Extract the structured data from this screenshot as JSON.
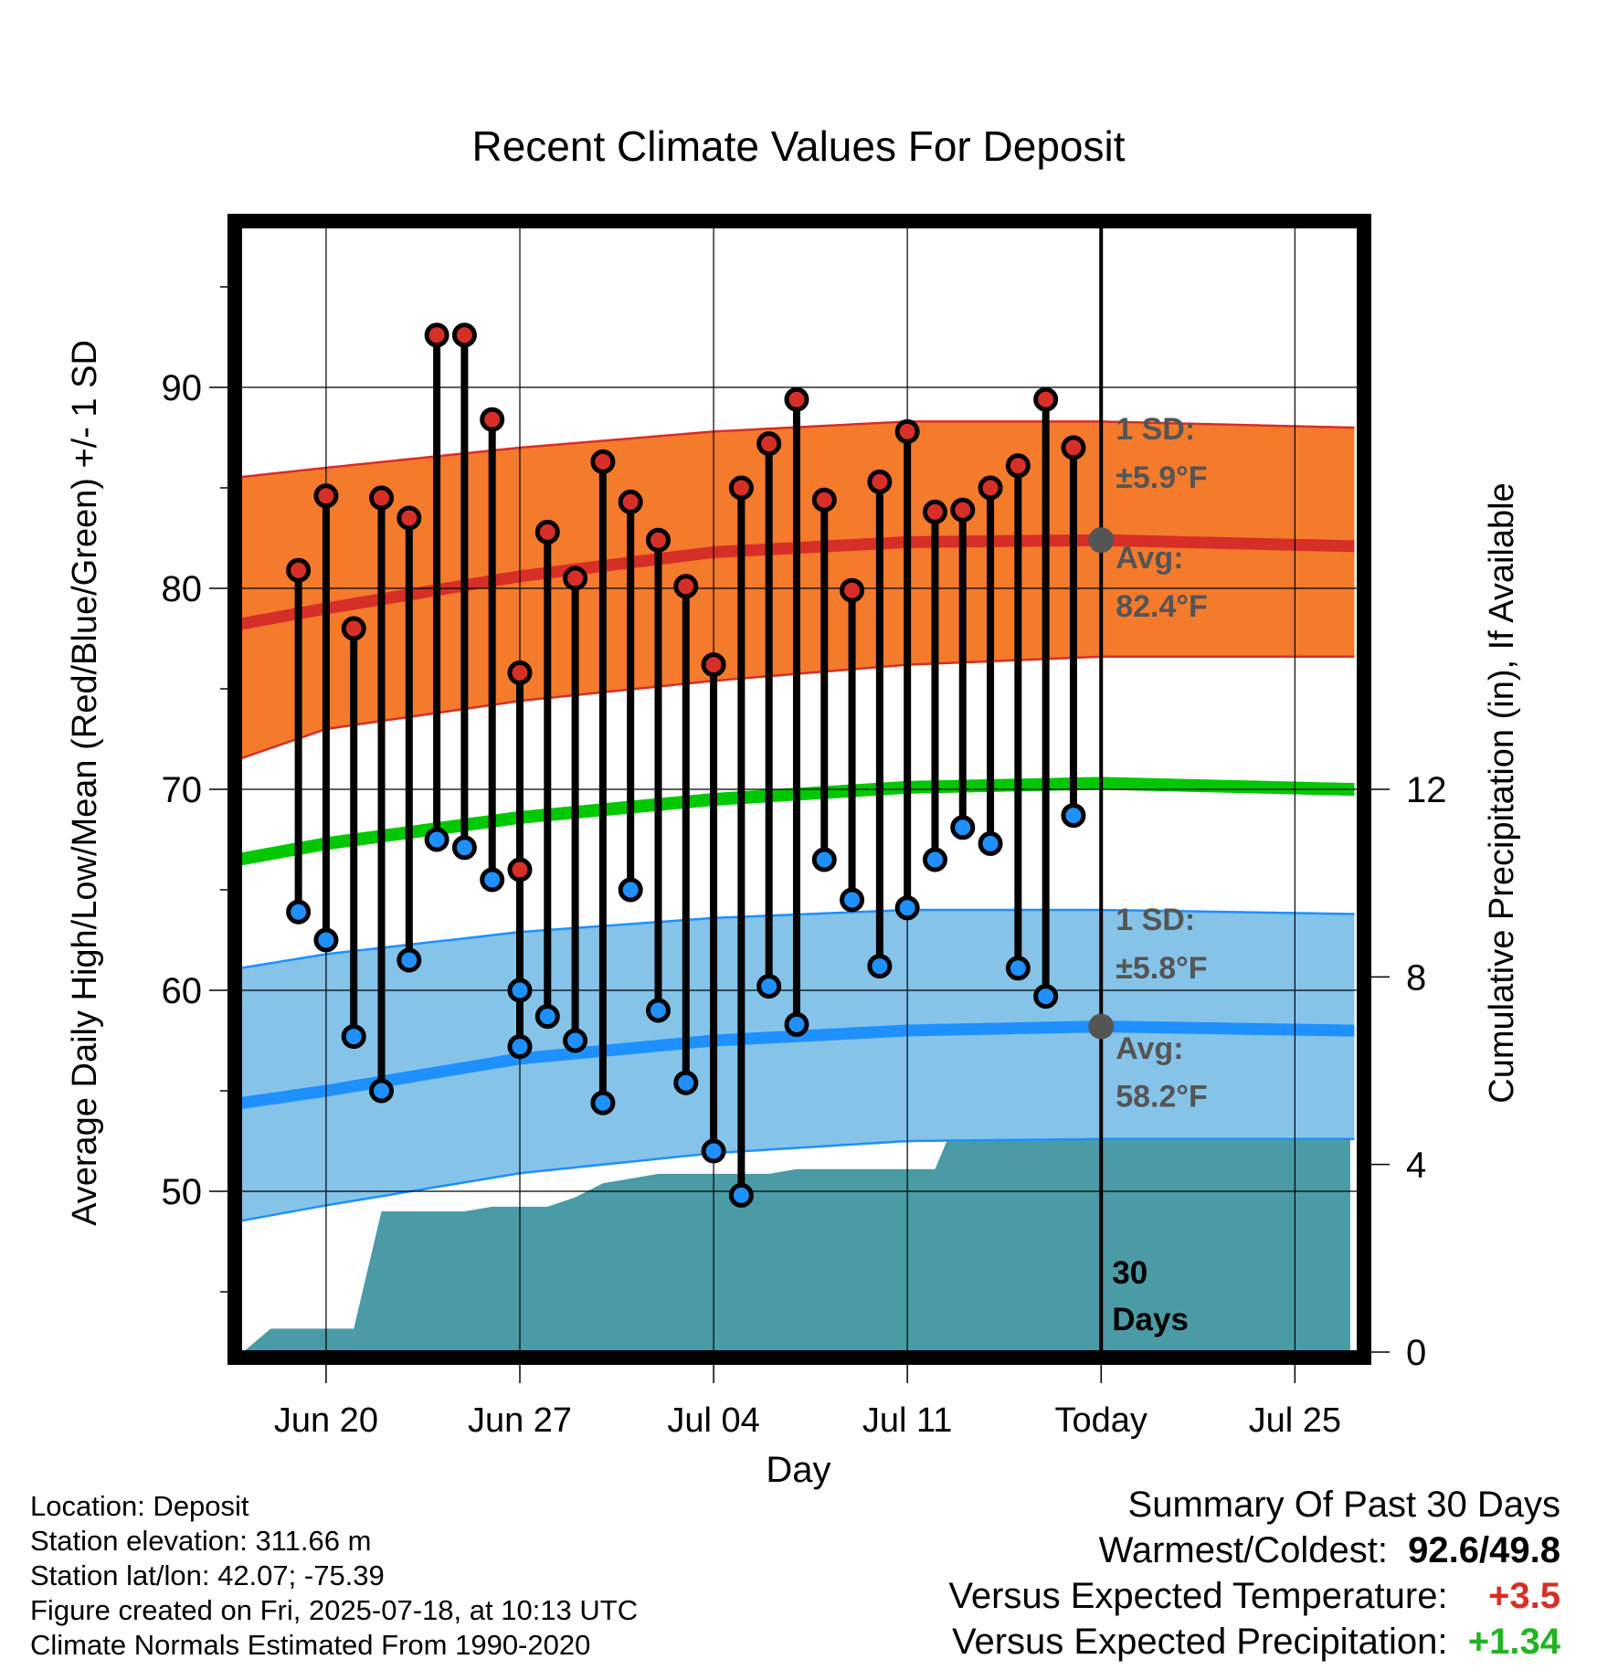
{
  "chart_data": {
    "type": "line",
    "title": "Recent Climate Values For Deposit",
    "xlabel": "Day",
    "ylabel": "Average Daily High/Low/Mean (Red/Blue/Green) +/- 1 SD",
    "y2label": "Cumulative Precipitation (in), If Available",
    "ylim": [
      42,
      98
    ],
    "y2lim": [
      0,
      24
    ],
    "yticks": [
      90,
      80,
      70,
      60,
      50
    ],
    "y2ticks": [
      12,
      8,
      4,
      0
    ],
    "x_tick_labels": [
      "Jun 20",
      "Jun 27",
      "Jul 04",
      "Jul 11",
      "Today",
      "Jul 25"
    ],
    "x_tick_days": [
      20,
      27,
      34,
      41,
      48,
      55
    ],
    "today_day": 48,
    "days": [
      19,
      20,
      21,
      22,
      23,
      24,
      25,
      26,
      27,
      28,
      29,
      30,
      31,
      32,
      33,
      34,
      35,
      36,
      37,
      38,
      39,
      40,
      41,
      42,
      43,
      44,
      45,
      46,
      47
    ],
    "highs": [
      80.9,
      84.6,
      78.0,
      84.5,
      83.5,
      92.6,
      92.6,
      88.4,
      75.8,
      66.0,
      82.8,
      80.5,
      86.3,
      84.3,
      82.4,
      80.1,
      76.2,
      85.0,
      87.2,
      89.4,
      84.4,
      79.9,
      85.3,
      87.8,
      83.8,
      83.9,
      85.0,
      86.1,
      89.4,
      87.0
    ],
    "high_days": [
      19,
      20,
      21,
      22,
      23,
      24,
      25,
      26,
      27,
      27,
      28,
      29,
      30,
      31,
      32,
      33,
      34,
      35,
      36,
      37,
      38,
      39,
      40,
      41,
      42,
      43,
      44,
      45,
      46,
      47
    ],
    "lows": [
      63.9,
      62.5,
      57.7,
      55.0,
      61.5,
      67.5,
      67.1,
      65.5,
      60.0,
      57.2,
      58.7,
      57.5,
      54.4,
      65.0,
      59.0,
      55.4,
      52.0,
      49.8,
      60.2,
      58.3,
      66.5,
      64.5,
      61.2,
      64.1,
      66.5,
      68.1,
      67.3,
      61.1,
      59.7,
      68.7
    ],
    "low_days": [
      19,
      20,
      21,
      22,
      23,
      24,
      25,
      26,
      27,
      27,
      28,
      29,
      30,
      31,
      32,
      33,
      34,
      35,
      36,
      37,
      38,
      39,
      40,
      41,
      42,
      43,
      44,
      45,
      46,
      47
    ],
    "series": [
      {
        "name": "High Avg",
        "color": "#d62f27",
        "days": [
          16,
          20,
          27,
          34,
          41,
          48,
          57
        ],
        "values": [
          78.0,
          79.0,
          80.6,
          81.8,
          82.3,
          82.4,
          82.1
        ]
      },
      {
        "name": "High +1 SD",
        "color": "#d62f27",
        "days": [
          16,
          20,
          27,
          34,
          41,
          48,
          57
        ],
        "values": [
          85.4,
          86.0,
          87.0,
          87.8,
          88.3,
          88.3,
          88.0
        ]
      },
      {
        "name": "High -1 SD",
        "color": "#d62f27",
        "days": [
          16,
          20,
          27,
          34,
          41,
          48,
          57
        ],
        "values": [
          71.1,
          73.0,
          74.4,
          75.4,
          76.2,
          76.6,
          76.6
        ]
      },
      {
        "name": "Mean Avg",
        "color": "#00c800",
        "days": [
          16,
          20,
          27,
          34,
          41,
          48,
          57
        ],
        "values": [
          66.3,
          67.3,
          68.6,
          69.5,
          70.1,
          70.3,
          70.0
        ]
      },
      {
        "name": "Low Avg",
        "color": "#1e90ff",
        "days": [
          16,
          20,
          27,
          34,
          41,
          48,
          57
        ],
        "values": [
          54.2,
          55.0,
          56.6,
          57.5,
          58.0,
          58.2,
          58.0
        ]
      },
      {
        "name": "Low +1 SD",
        "color": "#1e90ff",
        "days": [
          16,
          20,
          27,
          34,
          41,
          48,
          57
        ],
        "values": [
          60.9,
          61.8,
          62.9,
          63.6,
          64.0,
          64.0,
          63.8
        ]
      },
      {
        "name": "Low -1 SD",
        "color": "#1e90ff",
        "days": [
          16,
          20,
          27,
          34,
          41,
          48,
          57
        ],
        "values": [
          48.3,
          49.3,
          50.9,
          51.9,
          52.5,
          52.6,
          52.6
        ]
      }
    ],
    "precip": {
      "color": "#4a9ba5",
      "days": [
        16,
        17,
        18,
        19,
        20,
        21,
        22,
        23,
        24,
        25,
        26,
        27,
        28,
        29,
        30,
        31,
        32,
        33,
        34,
        35,
        36,
        37,
        38,
        39,
        40,
        41,
        42,
        43,
        44,
        45,
        46,
        47,
        48,
        57
      ],
      "values": [
        0.0,
        0.0,
        0.5,
        0.5,
        0.5,
        0.5,
        3.0,
        3.0,
        3.0,
        3.0,
        3.1,
        3.1,
        3.1,
        3.3,
        3.6,
        3.7,
        3.8,
        3.8,
        3.8,
        3.8,
        3.8,
        3.9,
        3.9,
        3.9,
        3.9,
        3.9,
        3.9,
        5.3,
        5.6,
        5.6,
        5.6,
        5.6,
        5.6,
        5.6
      ]
    },
    "annotations": {
      "high_sd": {
        "line1": "1 SD:",
        "line2": "±5.9°F"
      },
      "high_avg": {
        "line1": "Avg:",
        "line2": "82.4°F",
        "value": 82.4
      },
      "low_sd": {
        "line1": "1 SD:",
        "line2": "±5.8°F"
      },
      "low_avg": {
        "line1": "Avg:",
        "line2": "58.2°F",
        "value": 58.2
      },
      "days_label": {
        "line1": "30",
        "line2": "Days"
      }
    }
  },
  "info": {
    "location": "Location: Deposit",
    "elevation": "Station elevation: 311.66 m",
    "latlon": "Station lat/lon: 42.07; -75.39",
    "created": "Figure created on Fri, 2025-07-18, at 10:13 UTC",
    "normals": "Climate Normals Estimated From 1990-2020"
  },
  "summary": {
    "heading": "Summary Of Past 30 Days",
    "warmest_label": "Warmest/Coldest:",
    "warmest_value": "92.6/49.8",
    "temp_label": "Versus Expected Temperature:",
    "temp_value": "+3.5",
    "temp_color": "#d62f27",
    "precip_label": "Versus Expected Precipitation:",
    "precip_value": "+1.34",
    "precip_color": "#22b422"
  }
}
